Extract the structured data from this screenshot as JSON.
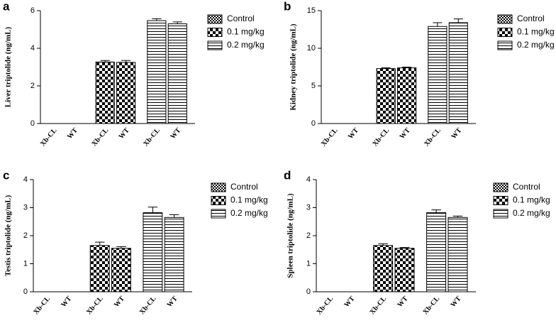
{
  "chart_data": [
    {
      "type": "bar",
      "label": "a",
      "ylabel": "Liver triptolide (ng/mL)",
      "categories": [
        "Xb-CL",
        "WT"
      ],
      "ylim": [
        0,
        6
      ],
      "yticks": [
        0,
        2,
        4,
        6
      ],
      "series": [
        {
          "name": "Control",
          "pattern": "fine",
          "values": [
            0,
            0
          ],
          "errors": [
            0,
            0
          ]
        },
        {
          "name": "0.1 mg/kg",
          "pattern": "checker",
          "values": [
            3.27,
            3.25
          ],
          "errors": [
            0.08,
            0.1
          ]
        },
        {
          "name": "0.2 mg/kg",
          "pattern": "hlines",
          "values": [
            5.47,
            5.3
          ],
          "errors": [
            0.1,
            0.1
          ]
        }
      ]
    },
    {
      "type": "bar",
      "label": "b",
      "ylabel": "Kidney triptolide (ng/mL)",
      "categories": [
        "Xb-CL",
        "WT"
      ],
      "ylim": [
        0,
        15
      ],
      "yticks": [
        0,
        5,
        10,
        15
      ],
      "series": [
        {
          "name": "Control",
          "pattern": "fine",
          "values": [
            0,
            0
          ],
          "errors": [
            0,
            0
          ]
        },
        {
          "name": "0.1 mg/kg",
          "pattern": "checker",
          "values": [
            7.3,
            7.4
          ],
          "errors": [
            0.1,
            0.1
          ]
        },
        {
          "name": "0.2 mg/kg",
          "pattern": "hlines",
          "values": [
            12.9,
            13.4
          ],
          "errors": [
            0.5,
            0.5
          ]
        }
      ]
    },
    {
      "type": "bar",
      "label": "c",
      "ylabel": "Testis triptolide (ng/mL)",
      "categories": [
        "Xb-CL",
        "WT"
      ],
      "ylim": [
        0,
        4
      ],
      "yticks": [
        0,
        1,
        2,
        3,
        4
      ],
      "series": [
        {
          "name": "Control",
          "pattern": "fine",
          "values": [
            0,
            0
          ],
          "errors": [
            0,
            0
          ]
        },
        {
          "name": "0.1 mg/kg",
          "pattern": "checker",
          "values": [
            1.65,
            1.55
          ],
          "errors": [
            0.12,
            0.06
          ]
        },
        {
          "name": "0.2 mg/kg",
          "pattern": "hlines",
          "values": [
            2.82,
            2.65
          ],
          "errors": [
            0.2,
            0.1
          ]
        }
      ]
    },
    {
      "type": "bar",
      "label": "d",
      "ylabel": "Spleen triptolide (ng/mL)",
      "categories": [
        "Xb-CL",
        "WT"
      ],
      "ylim": [
        0,
        4
      ],
      "yticks": [
        0,
        1,
        2,
        3,
        4
      ],
      "series": [
        {
          "name": "Control",
          "pattern": "fine",
          "values": [
            0,
            0
          ],
          "errors": [
            0,
            0
          ]
        },
        {
          "name": "0.1 mg/kg",
          "pattern": "checker",
          "values": [
            1.65,
            1.55
          ],
          "errors": [
            0.06,
            0.03
          ]
        },
        {
          "name": "0.2 mg/kg",
          "pattern": "hlines",
          "values": [
            2.82,
            2.65
          ],
          "errors": [
            0.1,
            0.05
          ]
        }
      ]
    }
  ]
}
